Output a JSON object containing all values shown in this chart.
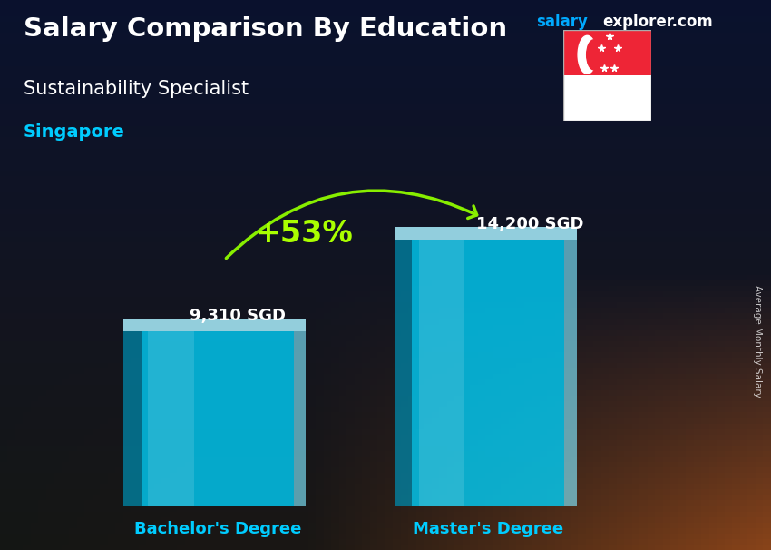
{
  "title": "Salary Comparison By Education",
  "subtitle": "Sustainability Specialist",
  "location": "Singapore",
  "site_name": "salary",
  "site_suffix": "explorer.com",
  "ylabel": "Average Monthly Salary",
  "categories": [
    "Bachelor's Degree",
    "Master's Degree"
  ],
  "values": [
    9310,
    14200
  ],
  "value_labels": [
    "9,310 SGD",
    "14,200 SGD"
  ],
  "pct_change": "+53%",
  "bar_color_main": "#00d4ff",
  "bar_color_light": "#aaf0ff",
  "bar_color_dark": "#0088aa",
  "bar_color_right": "#80e8ff",
  "title_color": "#ffffff",
  "subtitle_color": "#ffffff",
  "location_color": "#00ccff",
  "site_color_1": "#00aaff",
  "site_color_2": "#ffffff",
  "pct_color": "#aaff00",
  "arrow_color": "#88ee00",
  "label_color_top": "#ffffff",
  "cat_label_color": "#00ccff",
  "ylim": [
    0,
    17000
  ],
  "bar_positions": [
    0.28,
    0.67
  ],
  "bar_width": 0.22,
  "figsize": [
    8.5,
    6.06
  ],
  "dpi": 100
}
